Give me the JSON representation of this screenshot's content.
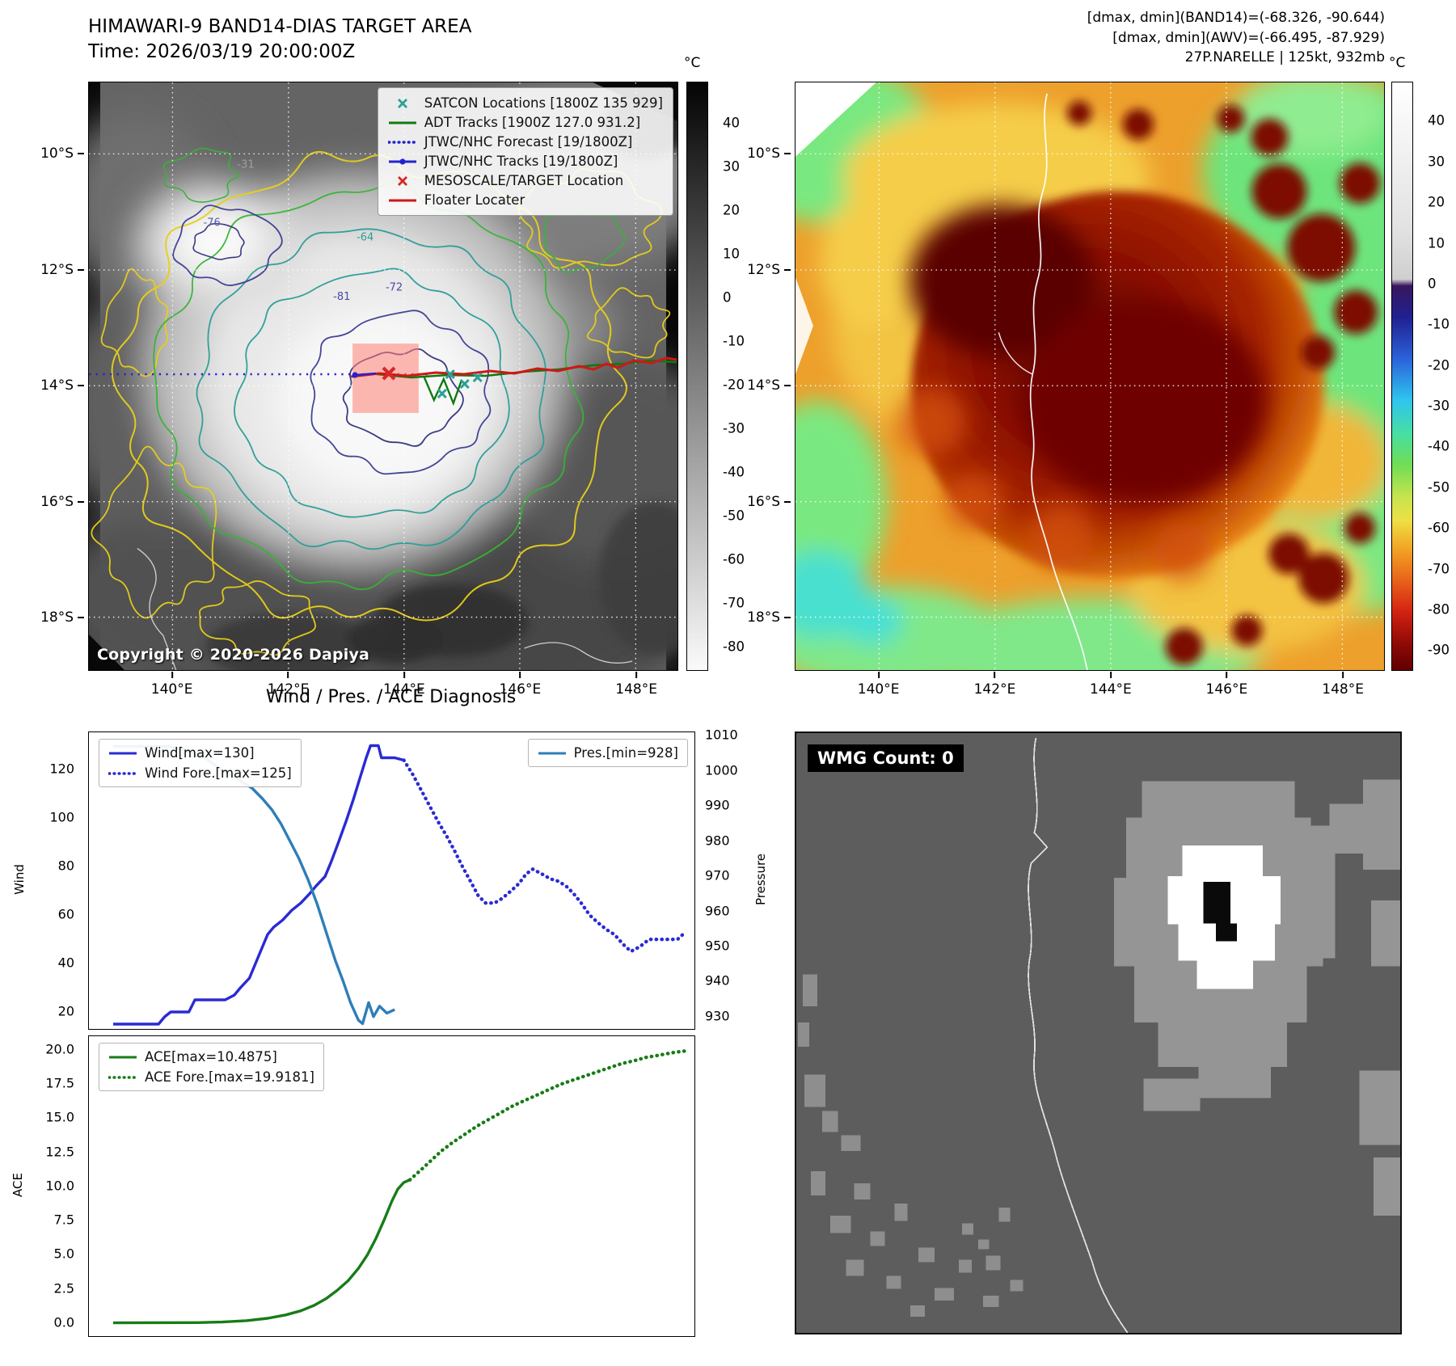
{
  "panel_band14": {
    "title": "HIMAWARI-9 BAND14-DIAS TARGET AREA",
    "subtitle": "Time: 2026/03/19 20:00:00Z",
    "copyright": "Copyright © 2020-2026 Dapiya",
    "legend": [
      {
        "label": "SATCON Locations [1800Z 135 929]",
        "marker": "x",
        "color": "#2aa198"
      },
      {
        "label": "ADT Tracks [1900Z 127.0 931.2]",
        "marker": "line",
        "color": "#0f7a0f"
      },
      {
        "label": "JTWC/NHC Forecast [19/1800Z]",
        "marker": "dotted",
        "color": "#2323cf"
      },
      {
        "label": "JTWC/NHC Tracks [19/1800Z]",
        "marker": "line-dot",
        "color": "#2323cf"
      },
      {
        "label": "MESOSCALE/TARGET Location",
        "marker": "x",
        "color": "#d62728"
      },
      {
        "label": "Floater Locater",
        "marker": "line",
        "color": "#cf1717"
      }
    ],
    "contour_labels": [
      "-31",
      "-76",
      "-64",
      "-81",
      "-72"
    ],
    "lat_ticks": [
      "10°S",
      "12°S",
      "14°S",
      "16°S",
      "18°S"
    ],
    "lon_ticks": [
      "140°E",
      "142°E",
      "144°E",
      "146°E",
      "148°E"
    ],
    "colorbar": {
      "unit": "°C",
      "ticks": [
        "40",
        "30",
        "20",
        "10",
        "0",
        "-10",
        "-20",
        "-30",
        "-40",
        "-50",
        "-60",
        "-70",
        "-80"
      ]
    }
  },
  "panel_awv": {
    "title_lines": [
      "[dmax, dmin](BAND14)=(-68.326, -90.644)",
      "[dmax, dmin](AWV)=(-66.495, -87.929)",
      "27P.NARELLE | 125kt, 932mb"
    ],
    "lat_ticks": [
      "10°S",
      "12°S",
      "14°S",
      "16°S",
      "18°S"
    ],
    "lon_ticks": [
      "140°E",
      "142°E",
      "144°E",
      "146°E",
      "148°E"
    ],
    "colorbar": {
      "unit": "°C",
      "ticks": [
        "40",
        "30",
        "20",
        "10",
        "0",
        "-10",
        "-20",
        "-30",
        "-40",
        "-50",
        "-60",
        "-70",
        "-80",
        "-90"
      ]
    }
  },
  "chart_data": [
    {
      "type": "line",
      "title": "Wind / Pres. / ACE Diagnosis",
      "ylabel_left": "Wind",
      "ylabel_right": "Pressure",
      "ylim_left": [
        13,
        135.5
      ],
      "ylim_right": [
        926.5,
        1011
      ],
      "yticks_left": [
        "20",
        "40",
        "60",
        "80",
        "100",
        "120"
      ],
      "yticks_right": [
        "930",
        "940",
        "950",
        "960",
        "970",
        "980",
        "990",
        "1000",
        "1010"
      ],
      "x_range": [
        0,
        1
      ],
      "legend_position": "left and right, top",
      "grid": false,
      "series": [
        {
          "name": "Wind[max=130]",
          "axis": "left",
          "style": "solid",
          "legend_box": "left",
          "color": "#2a2ad4",
          "points": [
            [
              0.04,
              15
            ],
            [
              0.115,
              15
            ],
            [
              0.125,
              18
            ],
            [
              0.135,
              20
            ],
            [
              0.165,
              20
            ],
            [
              0.175,
              25
            ],
            [
              0.225,
              25
            ],
            [
              0.24,
              27
            ],
            [
              0.25,
              30
            ],
            [
              0.265,
              34
            ],
            [
              0.275,
              40
            ],
            [
              0.285,
              46
            ],
            [
              0.295,
              52
            ],
            [
              0.305,
              55
            ],
            [
              0.32,
              58
            ],
            [
              0.335,
              62
            ],
            [
              0.35,
              65
            ],
            [
              0.365,
              69
            ],
            [
              0.375,
              72
            ],
            [
              0.39,
              76
            ],
            [
              0.4,
              82
            ],
            [
              0.412,
              90
            ],
            [
              0.425,
              99
            ],
            [
              0.437,
              108
            ],
            [
              0.448,
              117
            ],
            [
              0.458,
              125
            ],
            [
              0.465,
              130
            ],
            [
              0.478,
              130
            ],
            [
              0.483,
              125
            ],
            [
              0.505,
              125
            ],
            [
              0.52,
              124
            ]
          ]
        },
        {
          "name": "Wind Fore.[max=125]",
          "axis": "left",
          "style": "dotted",
          "legend_box": "left",
          "color": "#2a2ad4",
          "points": [
            [
              0.52,
              124
            ],
            [
              0.535,
              118
            ],
            [
              0.55,
              111
            ],
            [
              0.565,
              104
            ],
            [
              0.578,
              98
            ],
            [
              0.59,
              93
            ],
            [
              0.603,
              87
            ],
            [
              0.617,
              80
            ],
            [
              0.63,
              74
            ],
            [
              0.643,
              68
            ],
            [
              0.655,
              65
            ],
            [
              0.67,
              65
            ],
            [
              0.683,
              67
            ],
            [
              0.697,
              70
            ],
            [
              0.71,
              73
            ],
            [
              0.722,
              77
            ],
            [
              0.733,
              79
            ],
            [
              0.748,
              77
            ],
            [
              0.762,
              75
            ],
            [
              0.775,
              74
            ],
            [
              0.788,
              72
            ],
            [
              0.8,
              69
            ],
            [
              0.813,
              65
            ],
            [
              0.827,
              60
            ],
            [
              0.84,
              57
            ],
            [
              0.855,
              54
            ],
            [
              0.868,
              52
            ],
            [
              0.882,
              48
            ],
            [
              0.895,
              45
            ],
            [
              0.91,
              47
            ],
            [
              0.925,
              50
            ],
            [
              0.94,
              50
            ],
            [
              0.958,
              50
            ],
            [
              0.972,
              50
            ],
            [
              0.985,
              53
            ]
          ]
        },
        {
          "name": "Pres.[min=928]",
          "axis": "right",
          "style": "solid",
          "legend_box": "right",
          "color": "#2e7eb8",
          "points": [
            [
              0.04,
              1007
            ],
            [
              0.13,
              1007
            ],
            [
              0.16,
              1006
            ],
            [
              0.19,
              1004
            ],
            [
              0.213,
              1001
            ],
            [
              0.232,
              999
            ],
            [
              0.252,
              997
            ],
            [
              0.27,
              995
            ],
            [
              0.287,
              992
            ],
            [
              0.302,
              989
            ],
            [
              0.317,
              985
            ],
            [
              0.332,
              980
            ],
            [
              0.347,
              975
            ],
            [
              0.362,
              969
            ],
            [
              0.377,
              962
            ],
            [
              0.392,
              954
            ],
            [
              0.407,
              946
            ],
            [
              0.42,
              940
            ],
            [
              0.432,
              934
            ],
            [
              0.445,
              929
            ],
            [
              0.452,
              928
            ],
            [
              0.462,
              934
            ],
            [
              0.47,
              930
            ],
            [
              0.48,
              933
            ],
            [
              0.492,
              931
            ],
            [
              0.505,
              932
            ]
          ]
        }
      ]
    },
    {
      "type": "line",
      "title": "",
      "ylabel_left": "ACE",
      "ylim_left": [
        -0.95,
        21.0
      ],
      "yticks_left": [
        "0.0",
        "2.5",
        "5.0",
        "7.5",
        "10.0",
        "12.5",
        "15.0",
        "17.5",
        "20.0"
      ],
      "x_range": [
        0,
        1
      ],
      "legend_position": "left top",
      "grid": false,
      "series": [
        {
          "name": "ACE[max=10.4875]",
          "axis": "left",
          "style": "solid",
          "legend_box": "left",
          "color": "#177c17",
          "points": [
            [
              0.04,
              0.02
            ],
            [
              0.18,
              0.04
            ],
            [
              0.22,
              0.08
            ],
            [
              0.26,
              0.18
            ],
            [
              0.295,
              0.35
            ],
            [
              0.325,
              0.6
            ],
            [
              0.35,
              0.9
            ],
            [
              0.372,
              1.3
            ],
            [
              0.392,
              1.8
            ],
            [
              0.41,
              2.4
            ],
            [
              0.428,
              3.1
            ],
            [
              0.445,
              4.0
            ],
            [
              0.46,
              5.0
            ],
            [
              0.474,
              6.2
            ],
            [
              0.488,
              7.6
            ],
            [
              0.5,
              8.9
            ],
            [
              0.51,
              9.8
            ],
            [
              0.52,
              10.3
            ],
            [
              0.53,
              10.4875
            ]
          ]
        },
        {
          "name": "ACE Fore.[max=19.9181]",
          "axis": "left",
          "style": "dotted",
          "legend_box": "left",
          "color": "#177c17",
          "points": [
            [
              0.53,
              10.4875
            ],
            [
              0.548,
              11.2
            ],
            [
              0.565,
              11.9
            ],
            [
              0.582,
              12.6
            ],
            [
              0.6,
              13.2
            ],
            [
              0.62,
              13.8
            ],
            [
              0.64,
              14.4
            ],
            [
              0.66,
              14.9
            ],
            [
              0.68,
              15.4
            ],
            [
              0.7,
              15.9
            ],
            [
              0.72,
              16.3
            ],
            [
              0.74,
              16.7
            ],
            [
              0.76,
              17.1
            ],
            [
              0.78,
              17.5
            ],
            [
              0.8,
              17.8
            ],
            [
              0.82,
              18.1
            ],
            [
              0.84,
              18.4
            ],
            [
              0.86,
              18.7
            ],
            [
              0.88,
              19.0
            ],
            [
              0.9,
              19.2
            ],
            [
              0.92,
              19.45
            ],
            [
              0.94,
              19.6
            ],
            [
              0.958,
              19.75
            ],
            [
              0.972,
              19.85
            ],
            [
              0.985,
              19.9181
            ]
          ]
        }
      ]
    }
  ],
  "panel_wmg": {
    "label": "WMG Count: 0"
  }
}
